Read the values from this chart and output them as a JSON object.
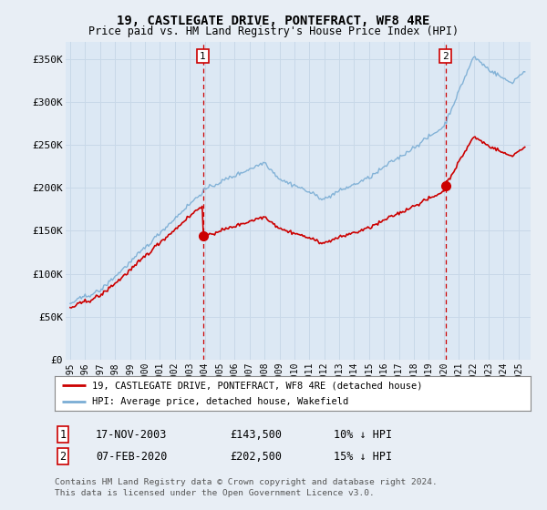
{
  "title": "19, CASTLEGATE DRIVE, PONTEFRACT, WF8 4RE",
  "subtitle": "Price paid vs. HM Land Registry's House Price Index (HPI)",
  "bg_color": "#e8eef5",
  "plot_bg_color": "#dce8f4",
  "grid_color": "#c8d8e8",
  "hpi_color": "#7aadd4",
  "price_color": "#cc0000",
  "vline_color": "#cc0000",
  "ylim": [
    0,
    370000
  ],
  "yticks": [
    0,
    50000,
    100000,
    150000,
    200000,
    250000,
    300000,
    350000
  ],
  "ytick_labels": [
    "£0",
    "£50K",
    "£100K",
    "£150K",
    "£200K",
    "£250K",
    "£300K",
    "£350K"
  ],
  "sale1_date": "17-NOV-2003",
  "sale1_price": 143500,
  "sale1_label": "10% ↓ HPI",
  "sale1_year": 2003.88,
  "sale2_date": "07-FEB-2020",
  "sale2_price": 202500,
  "sale2_label": "15% ↓ HPI",
  "sale2_year": 2020.1,
  "legend_line1": "19, CASTLEGATE DRIVE, PONTEFRACT, WF8 4RE (detached house)",
  "legend_line2": "HPI: Average price, detached house, Wakefield",
  "footer1": "Contains HM Land Registry data © Crown copyright and database right 2024.",
  "footer2": "This data is licensed under the Open Government Licence v3.0."
}
